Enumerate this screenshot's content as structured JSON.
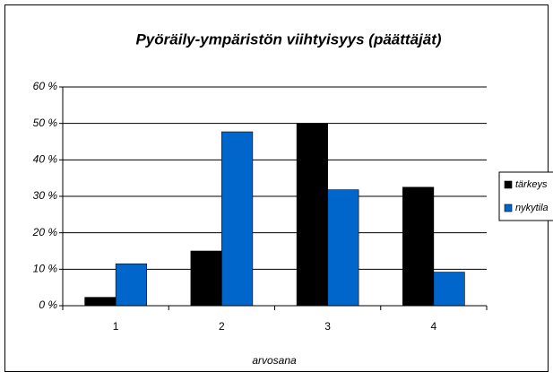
{
  "chart_data": {
    "type": "bar",
    "title": "Pyöräily-ympäristön viihtyisyys (päättäjät)",
    "x_label": "arvosana",
    "categories": [
      "1",
      "2",
      "3",
      "4"
    ],
    "series": [
      {
        "name": "tärkeys",
        "color": "#000000",
        "values": [
          2.3,
          15,
          50,
          32.5
        ]
      },
      {
        "name": "nykytila",
        "color": "#0066cc",
        "values": [
          11.5,
          47.7,
          31.8,
          9.2
        ]
      }
    ],
    "ylim": [
      0,
      60
    ],
    "yticks": [
      {
        "value": 0,
        "label": "0 %"
      },
      {
        "value": 10,
        "label": "10 %"
      },
      {
        "value": 20,
        "label": "20 %"
      },
      {
        "value": 30,
        "label": "30 %"
      },
      {
        "value": 40,
        "label": "40 %"
      },
      {
        "value": 50,
        "label": "50 %"
      },
      {
        "value": 60,
        "label": "60 %"
      }
    ],
    "grid": true,
    "legend": "right"
  }
}
